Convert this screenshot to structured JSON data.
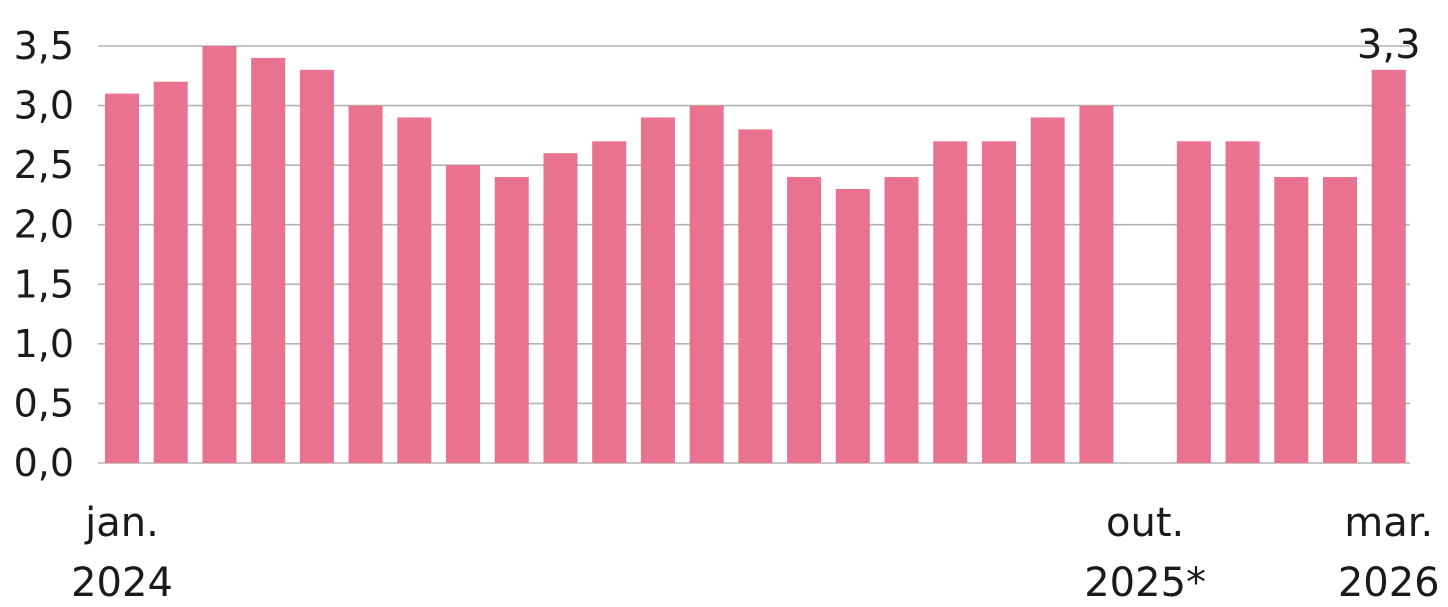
{
  "chart_data": {
    "type": "bar",
    "title": "",
    "xlabel": "",
    "ylabel": "",
    "ylim": [
      0,
      3.5
    ],
    "yticks": [
      "0,0",
      "0,5",
      "1,0",
      "1,5",
      "2,0",
      "2,5",
      "3,0",
      "3,5"
    ],
    "ytick_values": [
      0,
      0.5,
      1.0,
      1.5,
      2.0,
      2.5,
      3.0,
      3.5
    ],
    "grid": true,
    "bar_color": "#e8728f",
    "grid_color": "#b3b3b3",
    "categories": [
      "2024-01",
      "2024-02",
      "2024-03",
      "2024-04",
      "2024-05",
      "2024-06",
      "2024-07",
      "2024-08",
      "2024-09",
      "2024-10",
      "2024-11",
      "2024-12",
      "2025-01",
      "2025-02",
      "2025-03",
      "2025-04",
      "2025-05",
      "2025-06",
      "2025-07",
      "2025-08",
      "2025-09",
      "2025-10",
      "2025-11",
      "2025-12",
      "2026-01",
      "2026-02",
      "2026-03"
    ],
    "values": [
      3.1,
      3.2,
      3.5,
      3.4,
      3.3,
      3.0,
      2.9,
      2.5,
      2.4,
      2.6,
      2.7,
      2.9,
      3.0,
      2.8,
      2.4,
      2.3,
      2.4,
      2.7,
      2.7,
      2.9,
      3.0,
      null,
      2.7,
      2.7,
      2.4,
      2.4,
      3.3
    ],
    "x_labels": [
      {
        "index": 0,
        "line1": "jan.",
        "line2": "2024"
      },
      {
        "index": 21,
        "line1": "out.",
        "line2": "2025*"
      },
      {
        "index": 26,
        "line1": "mar.",
        "line2": "2026"
      }
    ],
    "annotations": [
      {
        "index": 26,
        "text": "3,3"
      }
    ]
  }
}
